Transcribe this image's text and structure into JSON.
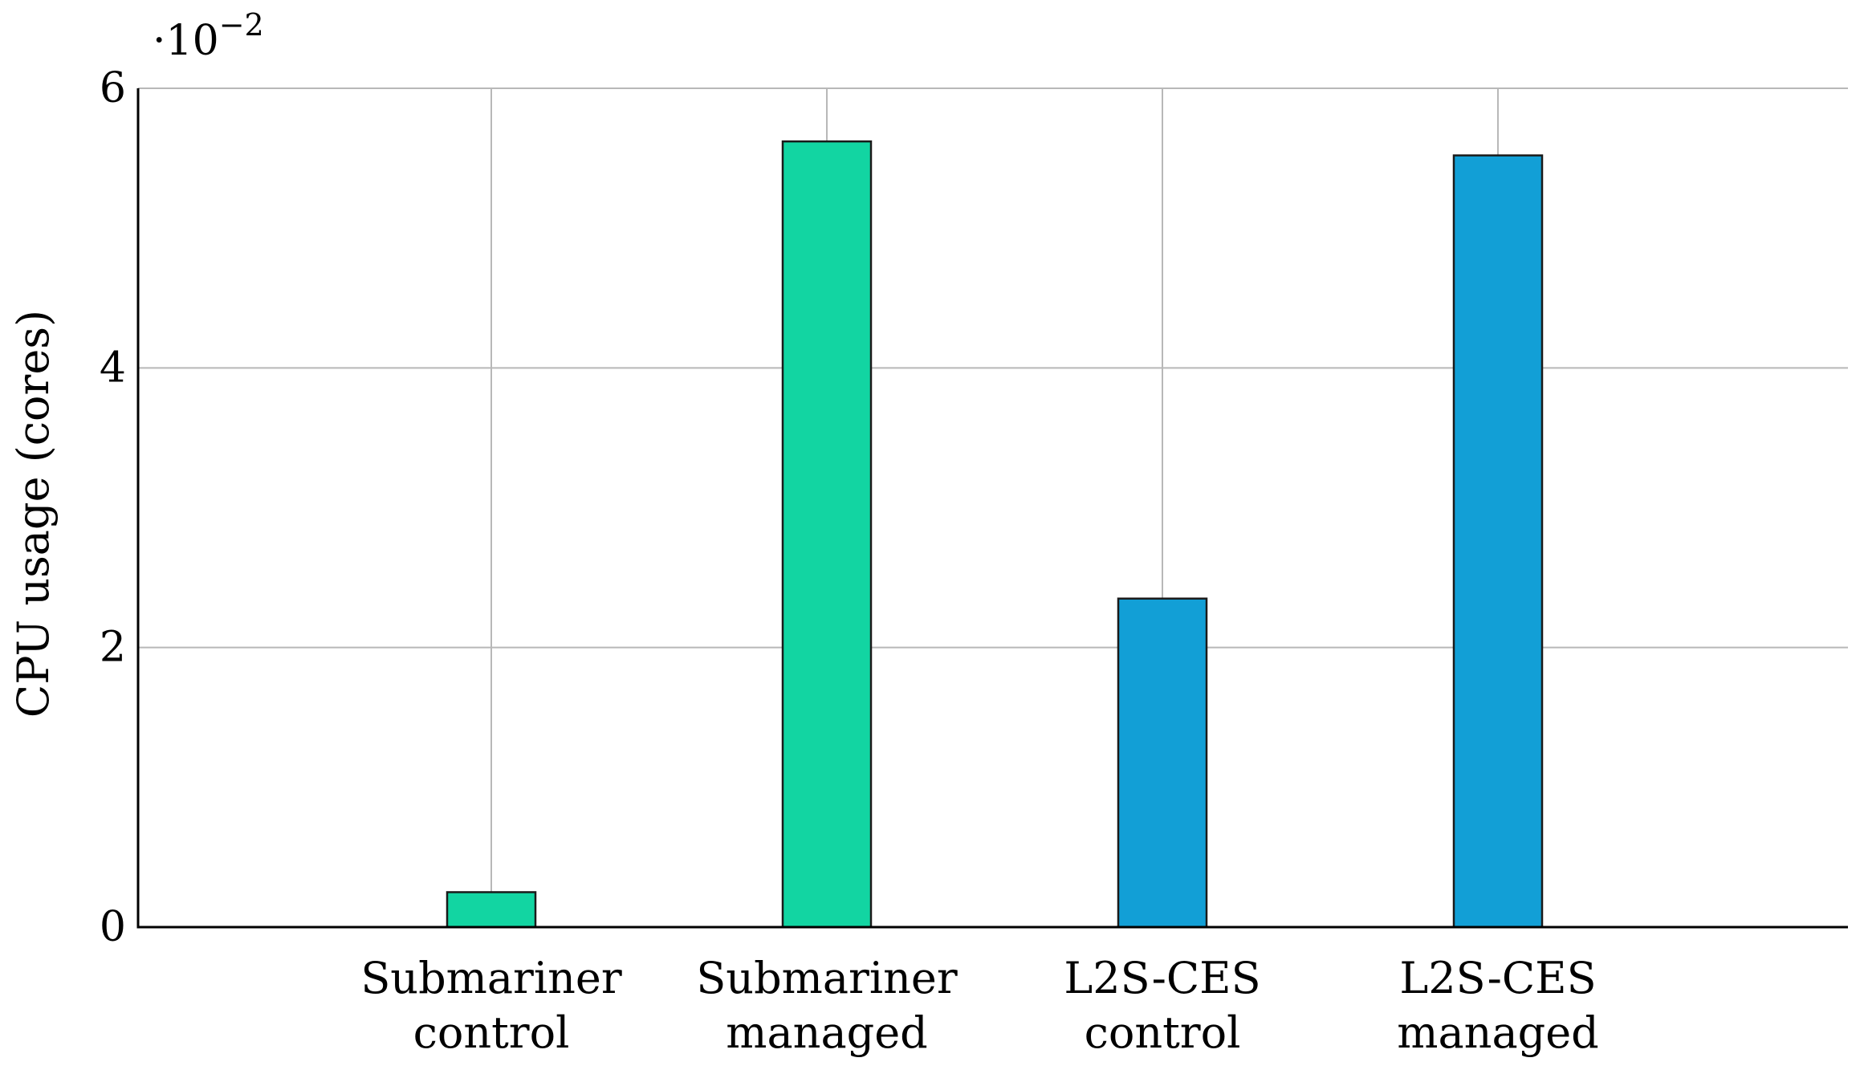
{
  "chart_data": {
    "type": "bar",
    "categories": [
      [
        "Submariner",
        "control"
      ],
      [
        "Submariner",
        "managed"
      ],
      [
        "L2S-CES",
        "control"
      ],
      [
        "L2S-CES",
        "managed"
      ]
    ],
    "values": [
      0.0025,
      0.0562,
      0.0235,
      0.0552
    ],
    "bar_colors": [
      "#12d5a2",
      "#12d5a2",
      "#129fd6",
      "#129fd6"
    ],
    "ylabel": "CPU usage (cores)",
    "ylim": [
      0,
      0.06
    ],
    "yticks": [
      0,
      0.02,
      0.04,
      0.06
    ],
    "ytick_labels": [
      "0",
      "2",
      "4",
      "6"
    ],
    "scale_label": "·10",
    "scale_exponent": "−2",
    "grid": true
  }
}
